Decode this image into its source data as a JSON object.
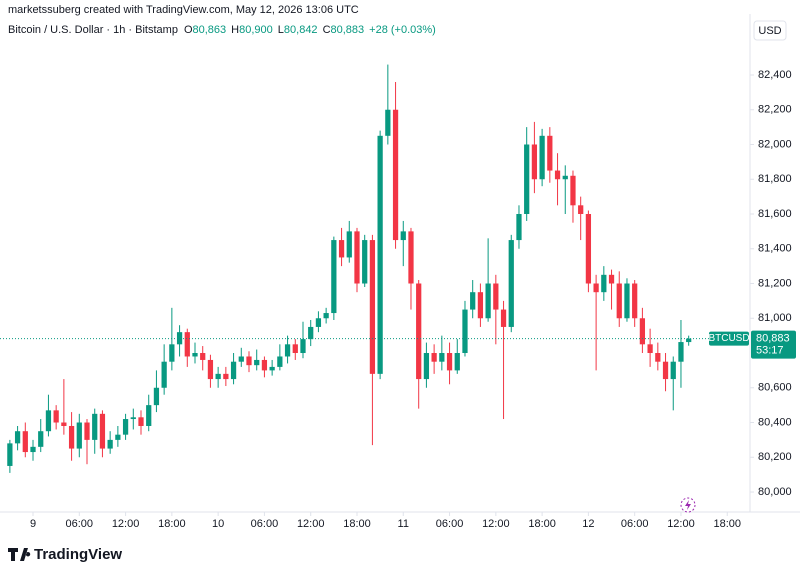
{
  "header": {
    "credit": "marketssuberg created with TradingView.com, May 12, 2026 13:06 UTC",
    "brand": "TradingView"
  },
  "chart_data": {
    "type": "candlestick",
    "symbol": "Bitcoin / U.S. Dollar · 1h · Bitstamp",
    "ohlc_fields": [
      {
        "key": "O",
        "value": "80,863"
      },
      {
        "key": "H",
        "value": "80,900"
      },
      {
        "key": "L",
        "value": "80,842"
      },
      {
        "key": "C",
        "value": "80,883"
      }
    ],
    "change": "+28 (+0.03%)",
    "currency": "USD",
    "up_color": "#089981",
    "down_color": "#f23645",
    "grid": false,
    "last_price": {
      "symbol": "BTCUSD",
      "value": 80883,
      "value_label": "80,883",
      "countdown": "53:17"
    },
    "xlim": [
      -4.28,
      92.95
    ],
    "xticks": [
      {
        "value": 0,
        "label": "9"
      },
      {
        "value": 6,
        "label": "06:00"
      },
      {
        "value": 12,
        "label": "12:00"
      },
      {
        "value": 18,
        "label": "18:00"
      },
      {
        "value": 24,
        "label": "10"
      },
      {
        "value": 30,
        "label": "06:00"
      },
      {
        "value": 36,
        "label": "12:00"
      },
      {
        "value": 42,
        "label": "18:00"
      },
      {
        "value": 48,
        "label": "11"
      },
      {
        "value": 54,
        "label": "06:00"
      },
      {
        "value": 60,
        "label": "12:00"
      },
      {
        "value": 66,
        "label": "18:00"
      },
      {
        "value": 72,
        "label": "12"
      },
      {
        "value": 78,
        "label": "06:00"
      },
      {
        "value": 84,
        "label": "12:00"
      },
      {
        "value": 90,
        "label": "18:00"
      }
    ],
    "ylim": [
      79885,
      82751
    ],
    "yticks": [
      {
        "value": 80000,
        "label": "80,000"
      },
      {
        "value": 80200,
        "label": "80,200"
      },
      {
        "value": 80400,
        "label": "80,400"
      },
      {
        "value": 80600,
        "label": "80,600"
      },
      {
        "value": 81000,
        "label": "81,000"
      },
      {
        "value": 81200,
        "label": "81,200"
      },
      {
        "value": 81400,
        "label": "81,400"
      },
      {
        "value": 81600,
        "label": "81,600"
      },
      {
        "value": 81800,
        "label": "81,800"
      },
      {
        "value": 82000,
        "label": "82,000"
      },
      {
        "value": 82200,
        "label": "82,200"
      },
      {
        "value": 82400,
        "label": "82,400"
      }
    ],
    "candles": {
      "x": [
        -3,
        -2,
        -1,
        0,
        1,
        2,
        3,
        4,
        5,
        6,
        7,
        8,
        9,
        10,
        11,
        12,
        13,
        14,
        15,
        16,
        17,
        18,
        19,
        20,
        21,
        22,
        23,
        24,
        25,
        26,
        27,
        28,
        29,
        30,
        31,
        32,
        33,
        34,
        35,
        36,
        37,
        38,
        39,
        40,
        41,
        42,
        43,
        44,
        45,
        46,
        47,
        48,
        49,
        50,
        51,
        52,
        53,
        54,
        55,
        56,
        57,
        58,
        59,
        60,
        61,
        62,
        63,
        64,
        65,
        66,
        67,
        68,
        69,
        70,
        71,
        72,
        73,
        74,
        75,
        76,
        77,
        78,
        79,
        80,
        81,
        82,
        83,
        84,
        85
      ],
      "open": [
        80150,
        80280,
        80350,
        80230,
        80260,
        80350,
        80470,
        80400,
        80380,
        80250,
        80400,
        80300,
        80450,
        80250,
        80300,
        80330,
        80420,
        80430,
        80380,
        80500,
        80600,
        80750,
        80850,
        80920,
        80780,
        80800,
        80760,
        80650,
        80680,
        80650,
        80750,
        80780,
        80730,
        80760,
        80700,
        80720,
        80780,
        80850,
        80800,
        80880,
        80950,
        81000,
        81030,
        81450,
        81350,
        81500,
        81200,
        81450,
        80680,
        82050,
        82200,
        81450,
        81500,
        81200,
        80650,
        80800,
        80750,
        80800,
        80700,
        80800,
        81050,
        81150,
        81000,
        81200,
        81050,
        80950,
        81450,
        81600,
        82000,
        81800,
        82050,
        81850,
        81800,
        81820,
        81650,
        81600,
        81200,
        81150,
        81250,
        81200,
        81000,
        81200,
        81000,
        80850,
        80800,
        80750,
        80650,
        80750,
        80863
      ],
      "high": [
        80300,
        80380,
        80400,
        80300,
        80420,
        80560,
        80500,
        80650,
        80460,
        80450,
        80420,
        80480,
        80470,
        80350,
        80380,
        80450,
        80480,
        80470,
        80560,
        80700,
        80850,
        81060,
        80960,
        80940,
        80860,
        80840,
        80790,
        80720,
        80720,
        80800,
        80830,
        80810,
        80820,
        80780,
        80760,
        80850,
        80900,
        80880,
        80980,
        80990,
        81040,
        81060,
        81470,
        81520,
        81560,
        81520,
        81480,
        81480,
        82080,
        82460,
        82360,
        81560,
        81520,
        81220,
        80860,
        80850,
        80900,
        80860,
        80880,
        81100,
        81220,
        81200,
        81460,
        81250,
        81100,
        81480,
        81650,
        82100,
        82130,
        82090,
        82100,
        81950,
        81880,
        81850,
        81700,
        81620,
        81250,
        81300,
        81280,
        81270,
        81230,
        81220,
        81060,
        80940,
        80860,
        80800,
        80780,
        80990,
        80900
      ],
      "low": [
        80110,
        80240,
        80200,
        80180,
        80230,
        80320,
        80360,
        80330,
        80180,
        80200,
        80160,
        80220,
        80200,
        80220,
        80260,
        80300,
        80360,
        80330,
        80350,
        80460,
        80560,
        80700,
        80780,
        80720,
        80740,
        80700,
        80600,
        80600,
        80610,
        80620,
        80720,
        80690,
        80700,
        80660,
        80670,
        80700,
        80740,
        80760,
        80770,
        80840,
        80920,
        80970,
        80990,
        81300,
        81320,
        81150,
        81180,
        80270,
        80650,
        82000,
        81400,
        81300,
        81050,
        80480,
        80600,
        80680,
        80700,
        80620,
        80680,
        80780,
        81000,
        80950,
        80980,
        80850,
        80420,
        80920,
        81400,
        81560,
        81720,
        81760,
        81780,
        81650,
        81600,
        81550,
        81450,
        81150,
        80700,
        81100,
        81050,
        80950,
        80980,
        80950,
        80800,
        80720,
        80700,
        80580,
        80470,
        80600,
        80842
      ],
      "close": [
        80280,
        80350,
        80230,
        80260,
        80350,
        80470,
        80400,
        80380,
        80250,
        80400,
        80300,
        80450,
        80250,
        80300,
        80330,
        80420,
        80430,
        80380,
        80500,
        80600,
        80750,
        80850,
        80920,
        80780,
        80800,
        80760,
        80650,
        80680,
        80650,
        80750,
        80780,
        80730,
        80760,
        80700,
        80720,
        80780,
        80850,
        80800,
        80880,
        80950,
        81000,
        81030,
        81450,
        81350,
        81500,
        81200,
        81450,
        80680,
        82050,
        82200,
        81450,
        81500,
        81200,
        80650,
        80800,
        80750,
        80800,
        80700,
        80800,
        81050,
        81150,
        81000,
        81200,
        81050,
        80950,
        81450,
        81600,
        82000,
        81800,
        82050,
        81850,
        81800,
        81820,
        81650,
        81600,
        81200,
        81150,
        81250,
        81200,
        81000,
        81200,
        81000,
        80850,
        80800,
        80750,
        80650,
        80750,
        80863,
        80883
      ]
    }
  }
}
